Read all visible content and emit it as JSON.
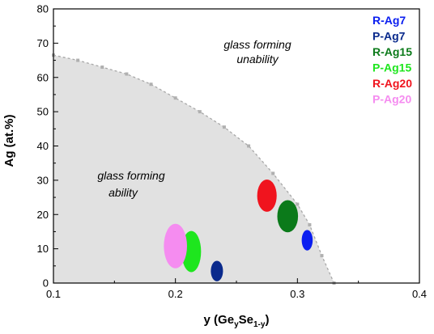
{
  "chart_data": {
    "type": "scatter",
    "xlabel": {
      "main": "y (Ge",
      "sub1": "y",
      "mid": "Se",
      "sub2": "1-y",
      "end": ")"
    },
    "ylabel": "Ag (at.%)",
    "xlim": [
      0.1,
      0.4
    ],
    "ylim": [
      0,
      80
    ],
    "xticks": [
      "0.1",
      "0.2",
      "0.3",
      "0.4"
    ],
    "yticks": [
      "0",
      "10",
      "20",
      "30",
      "40",
      "50",
      "60",
      "70",
      "80"
    ],
    "regions": {
      "upper": [
        "glass forming",
        "unability"
      ],
      "lower": [
        "glass forming",
        "ability"
      ]
    },
    "boundary": {
      "x": [
        0.1,
        0.12,
        0.14,
        0.16,
        0.18,
        0.2,
        0.22,
        0.24,
        0.26,
        0.28,
        0.3,
        0.31,
        0.32,
        0.33
      ],
      "y": [
        66.5,
        65,
        63,
        61,
        58,
        54,
        50,
        45.5,
        40,
        32,
        23,
        17,
        8,
        0
      ]
    },
    "series": [
      {
        "name": "R-Ag7",
        "color": "#0a1ef0",
        "x": 0.308,
        "y": 12.5,
        "rx": 0.0045,
        "ry": 3.0
      },
      {
        "name": "P-Ag7",
        "color": "#0a2a8c",
        "x": 0.234,
        "y": 3.5,
        "rx": 0.005,
        "ry": 3.0
      },
      {
        "name": "R-Ag15",
        "color": "#0b7a1a",
        "x": 0.292,
        "y": 19.5,
        "rx": 0.0085,
        "ry": 4.7
      },
      {
        "name": "P-Ag15",
        "color": "#1ee61e",
        "x": 0.213,
        "y": 9.2,
        "rx": 0.008,
        "ry": 6.0
      },
      {
        "name": "R-Ag20",
        "color": "#f0141e",
        "x": 0.275,
        "y": 25.5,
        "rx": 0.008,
        "ry": 4.7
      },
      {
        "name": "P-Ag20",
        "color": "#f58cf0",
        "x": 0.2,
        "y": 10.8,
        "rx": 0.0095,
        "ry": 6.5
      }
    ]
  }
}
